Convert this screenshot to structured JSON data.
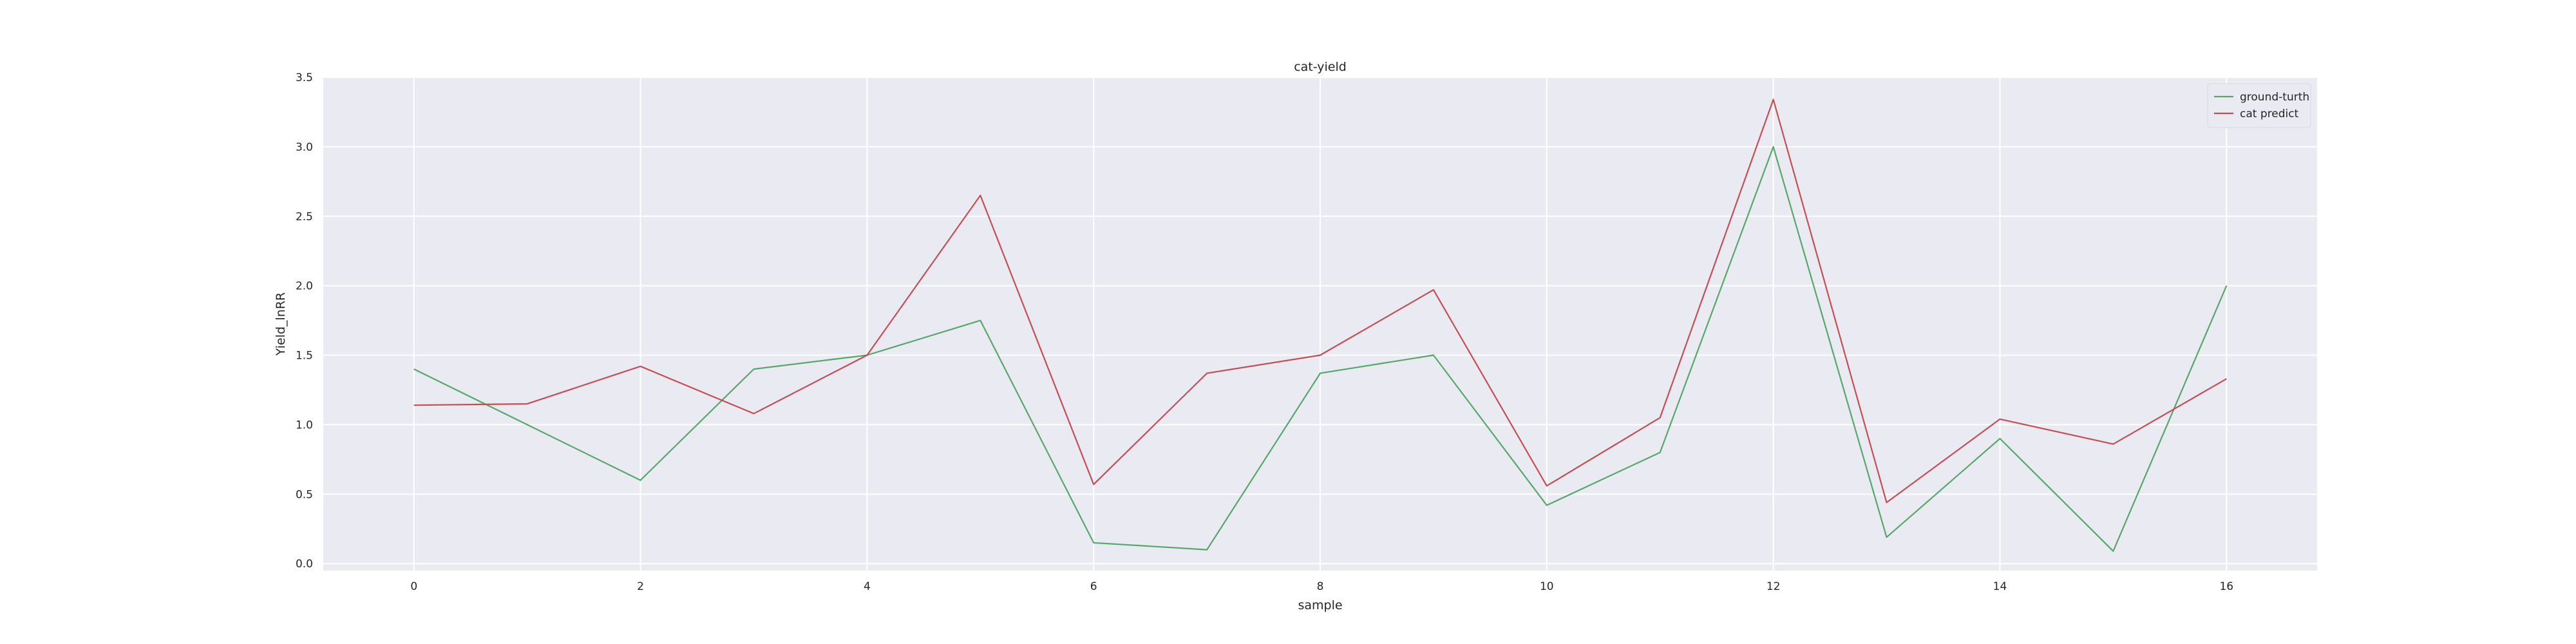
{
  "chart_data": {
    "type": "line",
    "title": "cat-yield",
    "xlabel": "sample",
    "ylabel": "Yield_lnRR",
    "xlim": [
      -0.8,
      16.8
    ],
    "ylim": [
      -0.05,
      3.5
    ],
    "x": [
      0,
      1,
      2,
      3,
      4,
      5,
      6,
      7,
      8,
      9,
      10,
      11,
      12,
      13,
      14,
      15,
      16
    ],
    "xticks": [
      0,
      2,
      4,
      6,
      8,
      10,
      12,
      14,
      16
    ],
    "yticks": [
      0.0,
      0.5,
      1.0,
      1.5,
      2.0,
      2.5,
      3.0,
      3.5
    ],
    "ytick_labels": [
      "0.0",
      "0.5",
      "1.0",
      "1.5",
      "2.0",
      "2.5",
      "3.0",
      "3.5"
    ],
    "grid": true,
    "legend_position": "top-right",
    "series": [
      {
        "name": "ground-turth",
        "color": "#55a868",
        "values": [
          1.4,
          1.0,
          0.6,
          1.4,
          1.5,
          1.75,
          0.15,
          0.1,
          1.37,
          1.5,
          0.42,
          0.8,
          3.0,
          0.19,
          0.9,
          0.09,
          2.0
        ]
      },
      {
        "name": "cat predict",
        "color": "#c44e52",
        "values": [
          1.14,
          1.15,
          1.42,
          1.08,
          1.5,
          2.65,
          0.57,
          1.37,
          1.5,
          1.97,
          0.56,
          1.05,
          3.34,
          0.44,
          1.04,
          0.86,
          1.33
        ]
      }
    ]
  }
}
